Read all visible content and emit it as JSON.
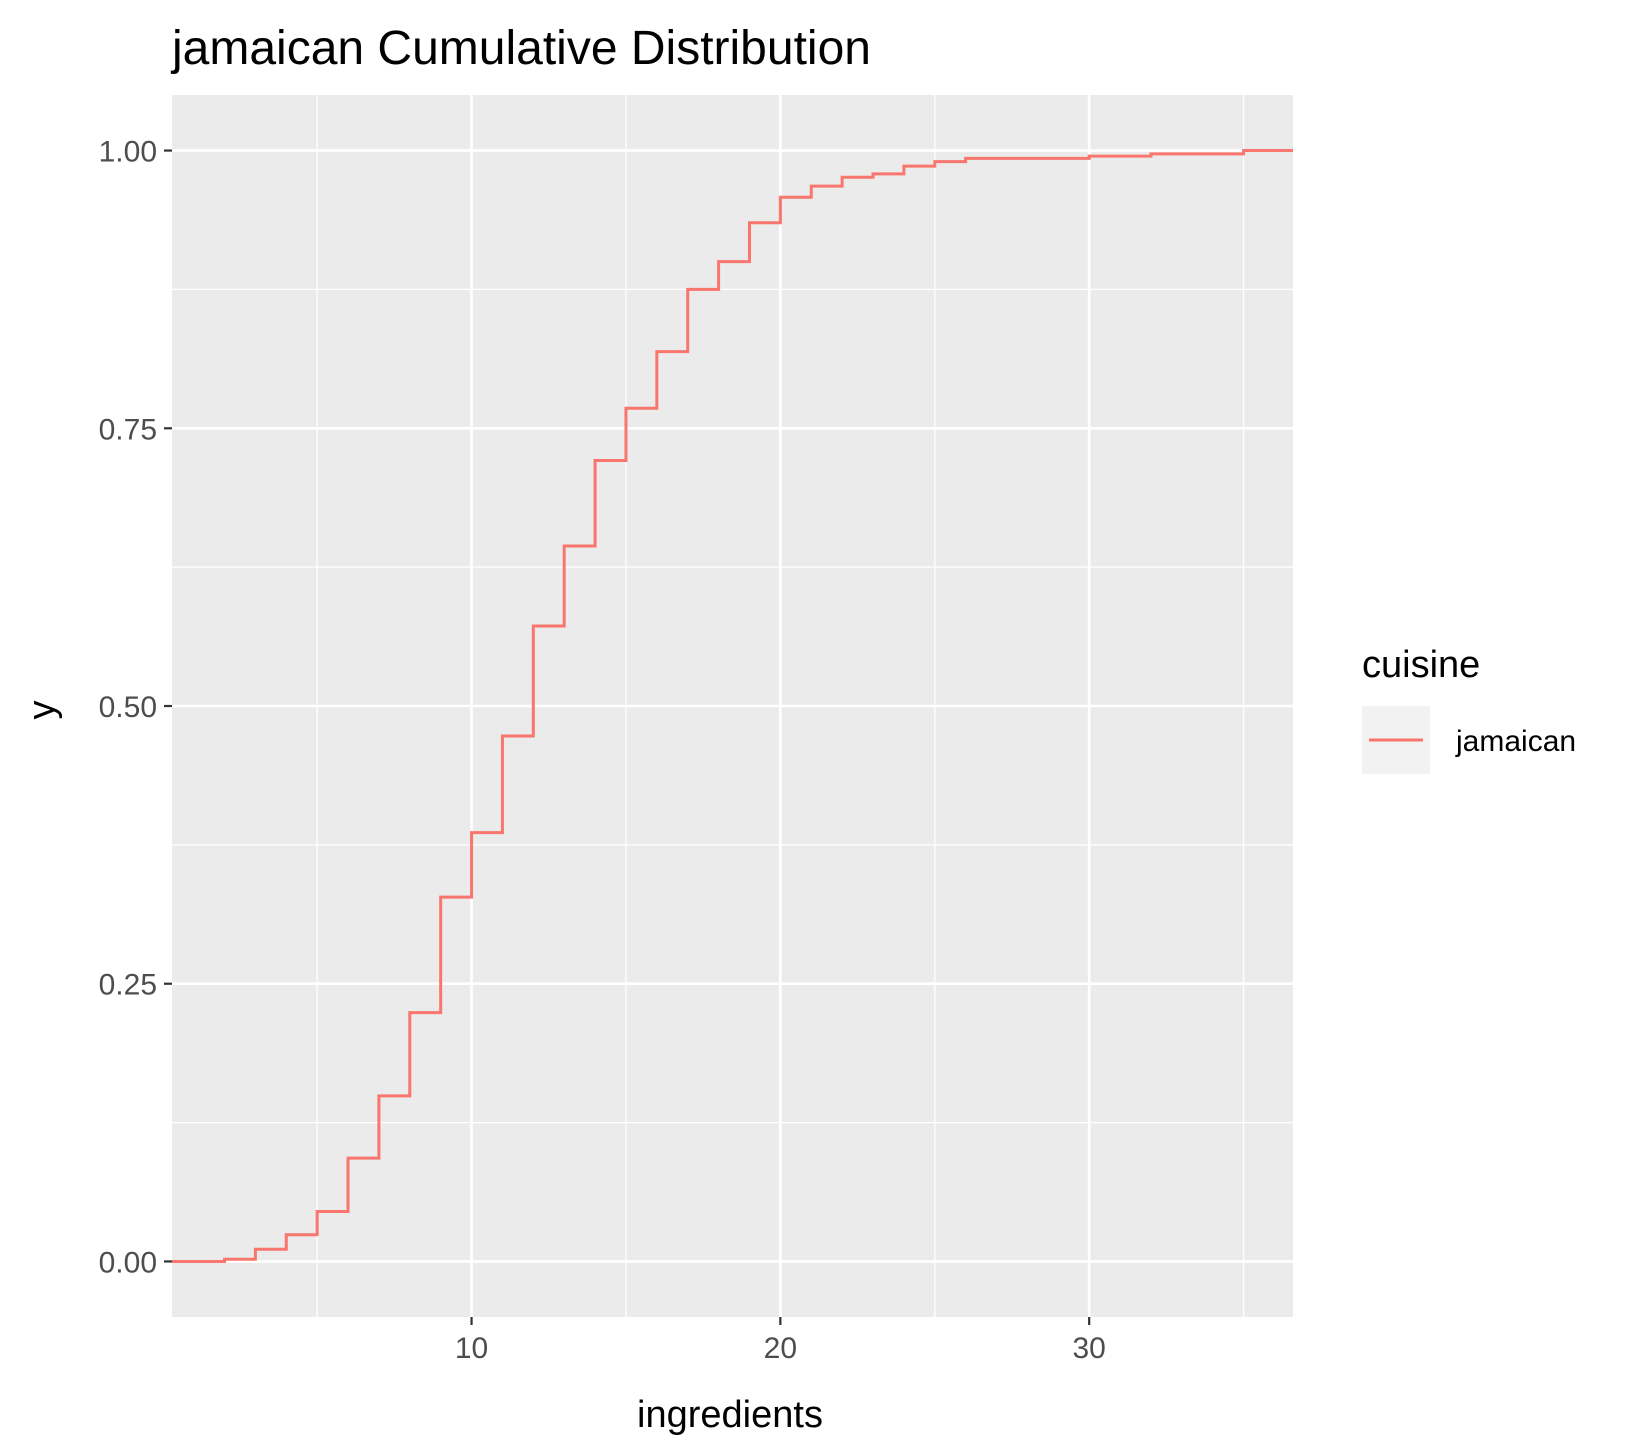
{
  "chart_data": {
    "type": "line",
    "step": true,
    "title": "jamaican Cumulative Distribution",
    "xlabel": "ingredients",
    "ylabel": "y",
    "xlim": [
      0.3,
      36.6
    ],
    "ylim": [
      -0.05,
      1.05
    ],
    "x_ticks": [
      10,
      20,
      30
    ],
    "x_tick_labels": [
      "10",
      "20",
      "30"
    ],
    "x_minor_ticks": [
      5,
      15,
      25,
      35
    ],
    "y_ticks": [
      0,
      0.25,
      0.5,
      0.75,
      1
    ],
    "y_tick_labels": [
      "0.00",
      "0.25",
      "0.50",
      "0.75",
      "1.00"
    ],
    "y_minor_ticks": [
      0.125,
      0.375,
      0.625,
      0.875
    ],
    "grid": true,
    "panel_background": "#ebebeb",
    "grid_color": "#ffffff",
    "legend": {
      "title": "cuisine",
      "position": "right",
      "entries": [
        "jamaican"
      ]
    },
    "series": [
      {
        "name": "jamaican",
        "color": "#f8766d",
        "x": [
          2,
          3,
          4,
          5,
          6,
          7,
          8,
          9,
          10,
          11,
          12,
          13,
          14,
          15,
          16,
          17,
          18,
          19,
          20,
          21,
          22,
          23,
          24,
          25,
          26,
          30,
          32,
          35
        ],
        "y": [
          0.002,
          0.011,
          0.024,
          0.045,
          0.093,
          0.149,
          0.224,
          0.328,
          0.386,
          0.473,
          0.572,
          0.644,
          0.721,
          0.768,
          0.819,
          0.875,
          0.9,
          0.935,
          0.958,
          0.968,
          0.976,
          0.979,
          0.986,
          0.99,
          0.993,
          0.995,
          0.997,
          1.0
        ]
      }
    ]
  }
}
